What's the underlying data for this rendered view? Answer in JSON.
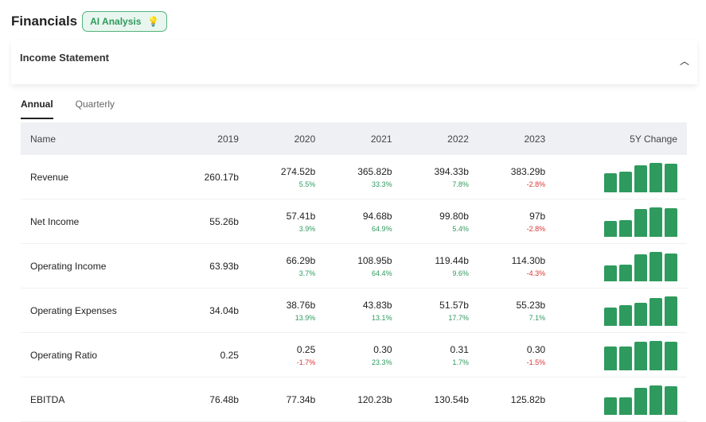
{
  "header": {
    "title": "Financials",
    "ai_button": "AI Analysis"
  },
  "section": {
    "title": "Income Statement"
  },
  "tabs": [
    {
      "label": "Annual",
      "active": true
    },
    {
      "label": "Quarterly",
      "active": false
    }
  ],
  "table": {
    "columns": [
      "Name",
      "2019",
      "2020",
      "2021",
      "2022",
      "2023",
      "5Y Change"
    ],
    "rows": [
      {
        "name": "Revenue",
        "values": [
          "260.17b",
          "274.52b",
          "365.82b",
          "394.33b",
          "383.29b"
        ],
        "changes": [
          "",
          "5.5%",
          "33.3%",
          "7.8%",
          "-2.8%"
        ],
        "spark": [
          260.17,
          274.52,
          365.82,
          394.33,
          383.29
        ]
      },
      {
        "name": "Net Income",
        "values": [
          "55.26b",
          "57.41b",
          "94.68b",
          "99.80b",
          "97b"
        ],
        "changes": [
          "",
          "3.9%",
          "64.9%",
          "5.4%",
          "-2.8%"
        ],
        "spark": [
          55.26,
          57.41,
          94.68,
          99.8,
          97
        ]
      },
      {
        "name": "Operating Income",
        "values": [
          "63.93b",
          "66.29b",
          "108.95b",
          "119.44b",
          "114.30b"
        ],
        "changes": [
          "",
          "3.7%",
          "64.4%",
          "9.6%",
          "-4.3%"
        ],
        "spark": [
          63.93,
          66.29,
          108.95,
          119.44,
          114.3
        ]
      },
      {
        "name": "Operating Expenses",
        "values": [
          "34.04b",
          "38.76b",
          "43.83b",
          "51.57b",
          "55.23b"
        ],
        "changes": [
          "",
          "13.9%",
          "13.1%",
          "17.7%",
          "7.1%"
        ],
        "spark": [
          34.04,
          38.76,
          43.83,
          51.57,
          55.23
        ]
      },
      {
        "name": "Operating Ratio",
        "values": [
          "0.25",
          "0.25",
          "0.30",
          "0.31",
          "0.30"
        ],
        "changes": [
          "",
          "-1.7%",
          "23.3%",
          "1.7%",
          "-1.5%"
        ],
        "spark": [
          0.25,
          0.25,
          0.3,
          0.31,
          0.3
        ]
      },
      {
        "name": "EBITDA",
        "values": [
          "76.48b",
          "77.34b",
          "120.23b",
          "130.54b",
          "125.82b"
        ],
        "changes": [
          "",
          "",
          "",
          "",
          ""
        ],
        "spark": [
          76.48,
          77.34,
          120.23,
          130.54,
          125.82
        ]
      }
    ]
  },
  "colors": {
    "accent": "#2e9a5d",
    "negative": "#dd3333"
  }
}
